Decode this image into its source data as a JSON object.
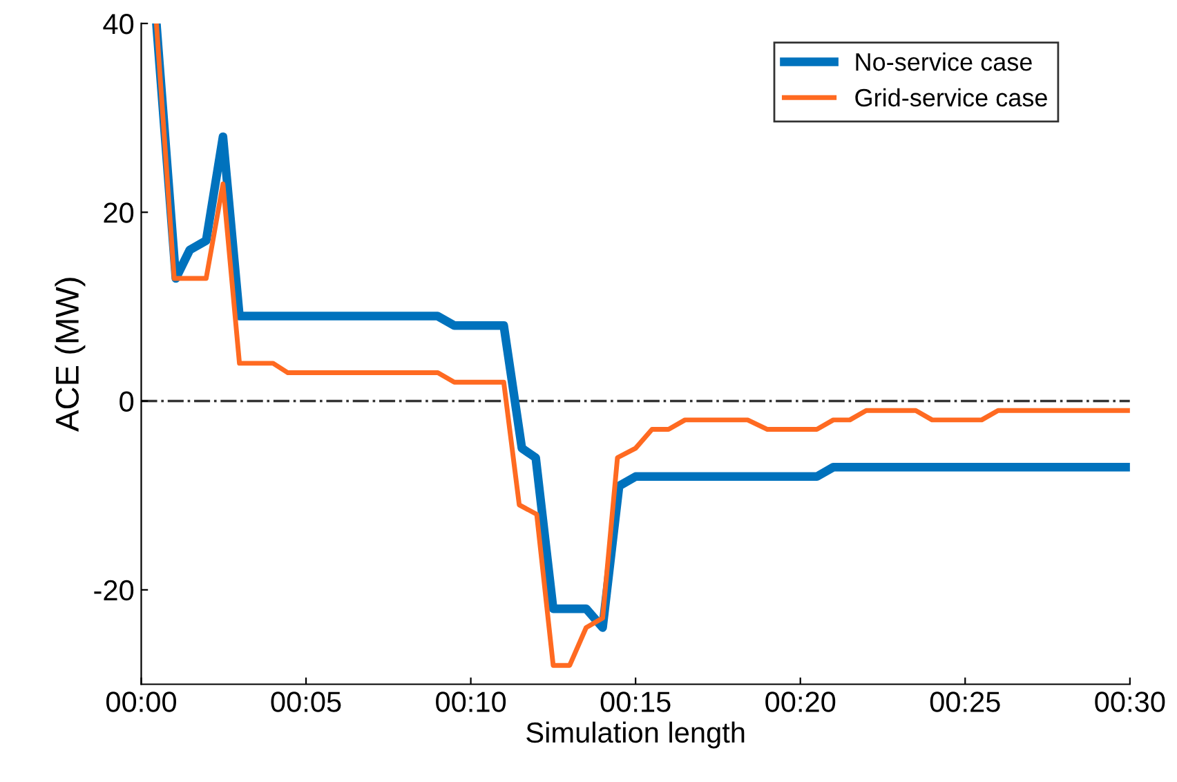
{
  "chart_data": {
    "type": "line",
    "xlabel": "Simulation length",
    "ylabel": "ACE (MW)",
    "xlim": [
      0,
      30
    ],
    "xticks": [
      {
        "value": 0,
        "label": "00:00"
      },
      {
        "value": 5,
        "label": "00:05"
      },
      {
        "value": 10,
        "label": "00:10"
      },
      {
        "value": 15,
        "label": "00:15"
      },
      {
        "value": 20,
        "label": "00:20"
      },
      {
        "value": 25,
        "label": "00:25"
      },
      {
        "value": 30,
        "label": "00:30"
      }
    ],
    "ylim": [
      -30,
      40
    ],
    "yticks": [
      -20,
      0,
      20,
      40
    ],
    "grid": false,
    "legend": "top right",
    "ref_lines": [
      {
        "axis": "y",
        "value": 0,
        "color": "#333333",
        "line_style": "dashdot"
      }
    ],
    "series": [
      {
        "name": "No-service case",
        "color": "#0072bd",
        "x": [
          0.46,
          1.05,
          1.47,
          1.97,
          2.48,
          2.98,
          8.99,
          9.5,
          11.0,
          11.55,
          11.97,
          12.5,
          13.5,
          14.0,
          14.5,
          15.0,
          20.5,
          21.0,
          30
        ],
        "values": [
          40,
          13,
          16,
          17,
          28,
          9,
          9,
          8,
          8,
          -5,
          -6,
          -22,
          -22,
          -24,
          -9,
          -8,
          -8,
          -7,
          -7
        ]
      },
      {
        "name": "Grid-service case",
        "color": "#ff6a21",
        "x": [
          0.46,
          1.0,
          1.97,
          2.48,
          2.98,
          4.0,
          4.45,
          9.0,
          9.5,
          11.0,
          11.47,
          12.0,
          12.5,
          13.0,
          13.5,
          14.0,
          14.45,
          15.0,
          15.5,
          16.0,
          16.5,
          18.4,
          19.0,
          20.5,
          21.0,
          21.5,
          22.0,
          23.5,
          24.0,
          25.5,
          26.0,
          30
        ],
        "values": [
          40,
          13,
          13,
          23,
          4,
          4,
          3,
          3,
          2,
          2,
          -11,
          -12,
          -28,
          -28,
          -24,
          -23,
          -6,
          -5,
          -3,
          -3,
          -2,
          -2,
          -3,
          -3,
          -2,
          -2,
          -1,
          -1,
          -2,
          -2,
          -1,
          -1
        ]
      }
    ]
  }
}
